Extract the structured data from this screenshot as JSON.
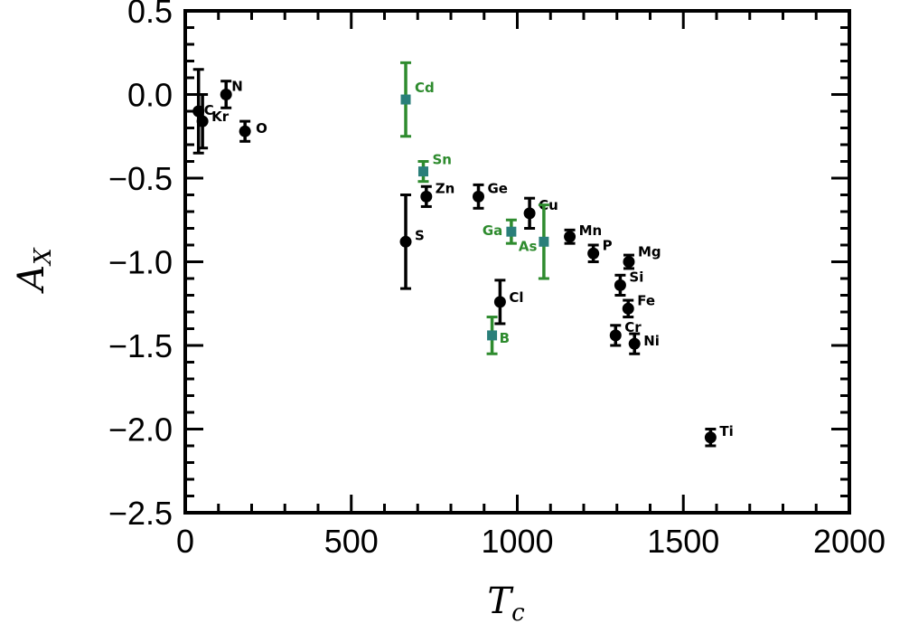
{
  "chart_data": {
    "type": "scatter",
    "xlabel_main": "T",
    "xlabel_sub": "c",
    "ylabel_main": "A",
    "ylabel_sub": "X",
    "xlim": [
      0,
      2000
    ],
    "ylim": [
      -2.5,
      0.5
    ],
    "x_ticks": [
      0,
      500,
      1000,
      1500,
      2000
    ],
    "y_ticks": [
      0.5,
      0.0,
      -0.5,
      -1.0,
      -1.5,
      -2.0,
      -2.5
    ],
    "x_tick_labels": [
      "0",
      "500",
      "1000",
      "1500",
      "2000"
    ],
    "y_tick_labels": [
      "0.5",
      "0.0",
      "−0.5",
      "−1.0",
      "−1.5",
      "−2.0",
      "−2.5"
    ],
    "colors": {
      "black": "#000000",
      "green": "#2e8b2e",
      "green_marker": "#2a7f7a"
    },
    "series": [
      {
        "group": "black",
        "points": [
          {
            "label": "C",
            "x": 40,
            "y": -0.1,
            "err": 0.25,
            "label_dx": 6,
            "label_dy": 4
          },
          {
            "label": "Kr",
            "x": 52,
            "y": -0.16,
            "err": 0.16,
            "label_dx": 10,
            "label_dy": 0
          },
          {
            "label": "N",
            "x": 123,
            "y": 0.0,
            "err": 0.08,
            "label_dx": 6,
            "label_dy": -4
          },
          {
            "label": "O",
            "x": 180,
            "y": -0.22,
            "err": 0.06,
            "label_dx": 12,
            "label_dy": 2
          },
          {
            "label": "S",
            "x": 664,
            "y": -0.88,
            "err": 0.28,
            "label_dx": 10,
            "label_dy": -2
          },
          {
            "label": "Zn",
            "x": 726,
            "y": -0.61,
            "err": 0.06,
            "label_dx": 10,
            "label_dy": -4
          },
          {
            "label": "Ge",
            "x": 883,
            "y": -0.61,
            "err": 0.07,
            "label_dx": 10,
            "label_dy": -4
          },
          {
            "label": "Cl",
            "x": 948,
            "y": -1.24,
            "err": 0.13,
            "label_dx": 10,
            "label_dy": 0
          },
          {
            "label": "Cu",
            "x": 1037,
            "y": -0.71,
            "err": 0.09,
            "label_dx": 10,
            "label_dy": -4
          },
          {
            "label": "Mn",
            "x": 1158,
            "y": -0.85,
            "err": 0.04,
            "label_dx": 10,
            "label_dy": -2
          },
          {
            "label": "P",
            "x": 1229,
            "y": -0.95,
            "err": 0.05,
            "label_dx": 10,
            "label_dy": -4
          },
          {
            "label": "Mg",
            "x": 1336,
            "y": -1.0,
            "err": 0.04,
            "label_dx": 10,
            "label_dy": -6
          },
          {
            "label": "Si",
            "x": 1310,
            "y": -1.14,
            "err": 0.06,
            "label_dx": 10,
            "label_dy": -4
          },
          {
            "label": "Fe",
            "x": 1334,
            "y": -1.28,
            "err": 0.05,
            "label_dx": 10,
            "label_dy": -4
          },
          {
            "label": "Cr",
            "x": 1296,
            "y": -1.44,
            "err": 0.06,
            "label_dx": 10,
            "label_dy": -4
          },
          {
            "label": "Ni",
            "x": 1353,
            "y": -1.49,
            "err": 0.06,
            "label_dx": 10,
            "label_dy": 2
          },
          {
            "label": "Ti",
            "x": 1582,
            "y": -2.05,
            "err": 0.05,
            "label_dx": 10,
            "label_dy": -2
          }
        ]
      },
      {
        "group": "green",
        "points": [
          {
            "label": "Cd",
            "x": 664,
            "y": -0.03,
            "err": 0.22,
            "label_dx": 10,
            "label_dy": -8
          },
          {
            "label": "Sn",
            "x": 717,
            "y": -0.46,
            "err": 0.06,
            "label_dx": 10,
            "label_dy": -8
          },
          {
            "label": "Ga",
            "x": 982,
            "y": -0.82,
            "err": 0.07,
            "label_dx": -32,
            "label_dy": 4
          },
          {
            "label": "As",
            "x": 1080,
            "y": -0.88,
            "err": 0.22,
            "label_dx": -28,
            "label_dy": 10
          },
          {
            "label": "B",
            "x": 924,
            "y": -1.44,
            "err": 0.11,
            "label_dx": 8,
            "label_dy": 8
          }
        ]
      }
    ]
  }
}
